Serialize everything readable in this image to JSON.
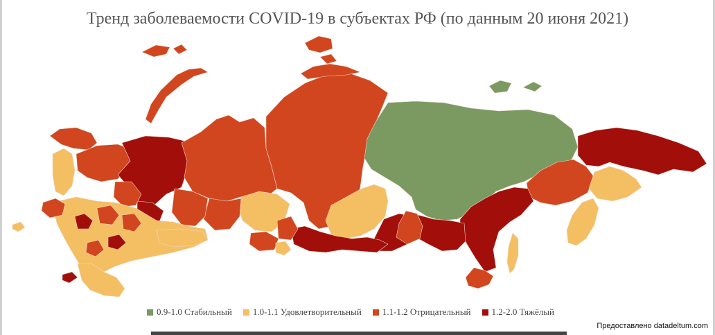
{
  "title": "Тренд заболеваемости COVID-19 в субъектах РФ (по данным 20 июня 2021)",
  "legend": [
    {
      "label": "0.9-1.0 Стабильный",
      "color": "#7a9a62"
    },
    {
      "label": "1.0-1.1 Удовлетворительный",
      "color": "#f4bf63"
    },
    {
      "label": "1.1-1.2 Отрицательный",
      "color": "#d1461f"
    },
    {
      "label": "1.2-2.0 Тяжёлый",
      "color": "#a20f0b"
    }
  ],
  "credit": "Предоставлено datadeltum.com"
}
